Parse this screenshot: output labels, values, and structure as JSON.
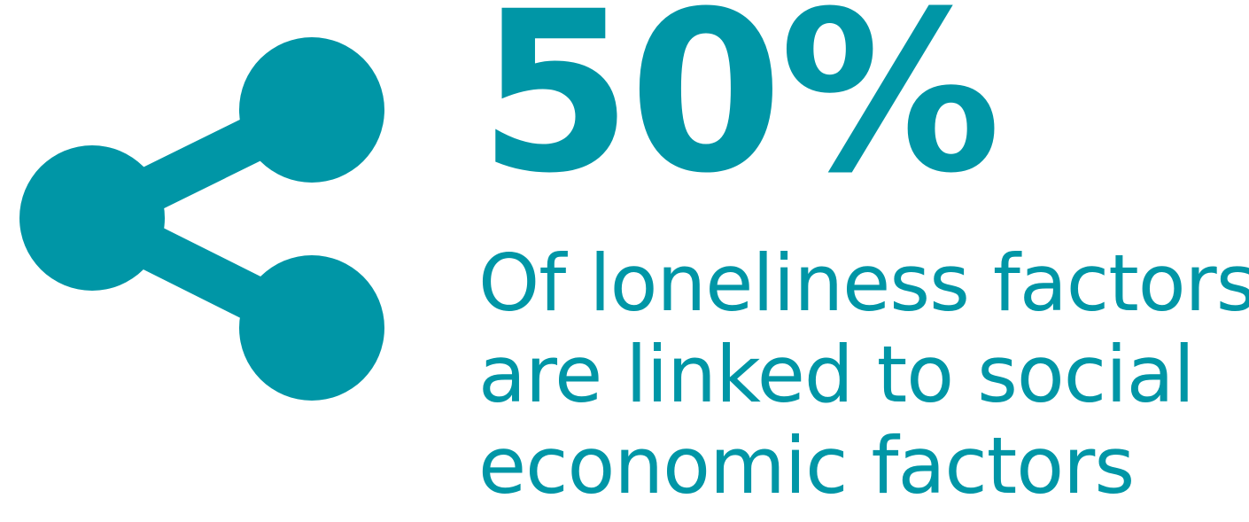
{
  "theme": {
    "accent": "#0096a6"
  },
  "icon": "share-icon",
  "stat": {
    "value": "50%"
  },
  "caption": {
    "lines": [
      "Of loneliness factors",
      "are linked to social",
      "economic factors"
    ]
  }
}
